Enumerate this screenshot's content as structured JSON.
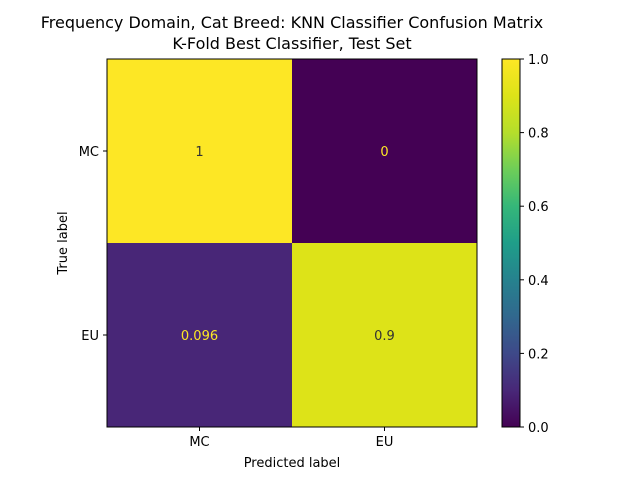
{
  "chart_data": {
    "type": "heatmap",
    "title": "Frequency Domain, Cat Breed: KNN Classifier Confusion Matrix",
    "subtitle": "K-Fold Best Classifier, Test Set",
    "xlabel": "Predicted label",
    "ylabel": "True label",
    "x_categories": [
      "MC",
      "EU"
    ],
    "y_categories": [
      "MC",
      "EU"
    ],
    "values": [
      [
        1,
        0
      ],
      [
        0.096,
        0.9
      ]
    ],
    "value_labels": [
      [
        "1",
        "0"
      ],
      [
        "0.096",
        "0.9"
      ]
    ],
    "colormap": "viridis",
    "colorbar": {
      "range": [
        0.0,
        1.0
      ],
      "ticks": [
        0.0,
        0.2,
        0.4,
        0.6,
        0.8,
        1.0
      ],
      "tick_labels": [
        "0.0",
        "0.2",
        "0.4",
        "0.6",
        "0.8",
        "1.0"
      ]
    },
    "grid": false
  }
}
